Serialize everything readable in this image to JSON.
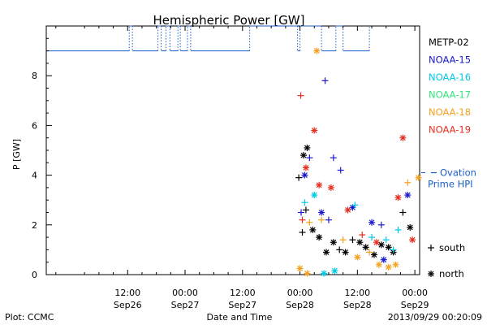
{
  "chart_data": {
    "type": "scatter",
    "title": "Hemispheric Power [GW]",
    "xlabel": "Date and Time",
    "ylabel": "P [GW]",
    "xlim": [
      "2013-09-25T19:00",
      "2013-09-29T01:00"
    ],
    "ylim": [
      0,
      10
    ],
    "y_ticks": [
      0,
      2,
      4,
      6,
      8
    ],
    "x_ticks": [
      {
        "t": "2013-09-26T12:00",
        "top": "12:00",
        "bottom": "Sep26"
      },
      {
        "t": "2013-09-27T00:00",
        "top": "00:00",
        "bottom": "Sep27"
      },
      {
        "t": "2013-09-27T12:00",
        "top": "12:00",
        "bottom": "Sep27"
      },
      {
        "t": "2013-09-28T00:00",
        "top": "00:00",
        "bottom": "Sep28"
      },
      {
        "t": "2013-09-28T12:00",
        "top": "12:00",
        "bottom": "Sep28"
      },
      {
        "t": "2013-09-29T00:00",
        "top": "00:00",
        "bottom": "Sep29"
      }
    ],
    "grid": false,
    "legend_position": "right",
    "marker_legend": [
      {
        "symbol": "+",
        "label": "south"
      },
      {
        "symbol": "*",
        "label": "north"
      }
    ],
    "series": [
      {
        "name": "METP-02",
        "color": "#000000",
        "points": [
          {
            "t": "2013-09-27T23:45",
            "v": 3.9,
            "m": "+"
          },
          {
            "t": "2013-09-28T00:45",
            "v": 4.8,
            "m": "*"
          },
          {
            "t": "2013-09-28T01:30",
            "v": 5.1,
            "m": "*"
          },
          {
            "t": "2013-09-28T00:30",
            "v": 1.7,
            "m": "+"
          },
          {
            "t": "2013-09-28T01:15",
            "v": 2.6,
            "m": "+"
          },
          {
            "t": "2013-09-28T02:40",
            "v": 1.8,
            "m": "*"
          },
          {
            "t": "2013-09-28T04:00",
            "v": 1.5,
            "m": "*"
          },
          {
            "t": "2013-09-28T05:30",
            "v": 0.9,
            "m": "*"
          },
          {
            "t": "2013-09-28T07:00",
            "v": 1.3,
            "m": "*"
          },
          {
            "t": "2013-09-28T08:15",
            "v": 1.0,
            "m": "+"
          },
          {
            "t": "2013-09-28T09:30",
            "v": 0.9,
            "m": "*"
          },
          {
            "t": "2013-09-28T11:00",
            "v": 1.4,
            "m": "+"
          },
          {
            "t": "2013-09-28T12:30",
            "v": 1.3,
            "m": "*"
          },
          {
            "t": "2013-09-28T13:45",
            "v": 1.1,
            "m": "*"
          },
          {
            "t": "2013-09-28T15:30",
            "v": 0.8,
            "m": "*"
          },
          {
            "t": "2013-09-28T17:00",
            "v": 1.2,
            "m": "*"
          },
          {
            "t": "2013-09-28T18:30",
            "v": 1.1,
            "m": "*"
          },
          {
            "t": "2013-09-28T19:30",
            "v": 0.9,
            "m": "*"
          },
          {
            "t": "2013-09-28T21:30",
            "v": 2.5,
            "m": "+"
          },
          {
            "t": "2013-09-28T23:00",
            "v": 1.9,
            "m": "*"
          }
        ]
      },
      {
        "name": "NOAA-15",
        "color": "#1a1acc",
        "points": [
          {
            "t": "2013-09-28T00:15",
            "v": 2.5,
            "m": "+"
          },
          {
            "t": "2013-09-28T02:00",
            "v": 4.7,
            "m": "+"
          },
          {
            "t": "2013-09-28T01:00",
            "v": 4.0,
            "m": "*"
          },
          {
            "t": "2013-09-28T05:15",
            "v": 7.8,
            "m": "+"
          },
          {
            "t": "2013-09-28T07:00",
            "v": 4.7,
            "m": "+"
          },
          {
            "t": "2013-09-28T08:30",
            "v": 4.2,
            "m": "+"
          },
          {
            "t": "2013-09-28T04:30",
            "v": 2.5,
            "m": "*"
          },
          {
            "t": "2013-09-28T06:00",
            "v": 2.2,
            "m": "+"
          },
          {
            "t": "2013-09-28T11:00",
            "v": 2.7,
            "m": "*"
          },
          {
            "t": "2013-09-28T15:00",
            "v": 2.1,
            "m": "*"
          },
          {
            "t": "2013-09-28T17:00",
            "v": 2.0,
            "m": "+"
          },
          {
            "t": "2013-09-28T17:30",
            "v": 0.6,
            "m": "*"
          },
          {
            "t": "2013-09-28T22:30",
            "v": 3.2,
            "m": "*"
          }
        ]
      },
      {
        "name": "NOAA-16",
        "color": "#00c8e6",
        "points": [
          {
            "t": "2013-09-28T01:00",
            "v": 2.9,
            "m": "+"
          },
          {
            "t": "2013-09-28T03:00",
            "v": 3.2,
            "m": "*"
          },
          {
            "t": "2013-09-28T05:00",
            "v": 0.05,
            "m": "*"
          },
          {
            "t": "2013-09-28T07:15",
            "v": 0.15,
            "m": "*"
          },
          {
            "t": "2013-09-28T11:30",
            "v": 2.8,
            "m": "+"
          },
          {
            "t": "2013-09-28T15:00",
            "v": 1.5,
            "m": "+"
          },
          {
            "t": "2013-09-28T18:00",
            "v": 1.4,
            "m": "+"
          },
          {
            "t": "2013-09-28T19:30",
            "v": 1.0,
            "m": "+"
          },
          {
            "t": "2013-09-28T20:30",
            "v": 1.8,
            "m": "+"
          }
        ]
      },
      {
        "name": "NOAA-17",
        "color": "#33e67a",
        "points": []
      },
      {
        "name": "NOAA-18",
        "color": "#f5a01e",
        "points": [
          {
            "t": "2013-09-28T00:00",
            "v": 0.25,
            "m": "*"
          },
          {
            "t": "2013-09-28T01:30",
            "v": 0.05,
            "m": "*"
          },
          {
            "t": "2013-09-28T03:30",
            "v": 9.0,
            "m": "*"
          },
          {
            "t": "2013-09-28T02:00",
            "v": 2.1,
            "m": "+"
          },
          {
            "t": "2013-09-28T04:30",
            "v": 2.2,
            "m": "+"
          },
          {
            "t": "2013-09-28T09:00",
            "v": 1.4,
            "m": "+"
          },
          {
            "t": "2013-09-28T12:00",
            "v": 0.7,
            "m": "*"
          },
          {
            "t": "2013-09-28T14:30",
            "v": 0.9,
            "m": "+"
          },
          {
            "t": "2013-09-28T16:30",
            "v": 0.4,
            "m": "*"
          },
          {
            "t": "2013-09-28T18:30",
            "v": 0.3,
            "m": "*"
          },
          {
            "t": "2013-09-28T20:00",
            "v": 0.4,
            "m": "*"
          },
          {
            "t": "2013-09-28T22:30",
            "v": 3.7,
            "m": "+"
          },
          {
            "t": "2013-09-29T00:45",
            "v": 3.9,
            "m": "*"
          }
        ]
      },
      {
        "name": "NOAA-19",
        "color": "#e62e1e",
        "points": [
          {
            "t": "2013-09-28T00:10",
            "v": 7.2,
            "m": "+"
          },
          {
            "t": "2013-09-28T03:00",
            "v": 5.8,
            "m": "*"
          },
          {
            "t": "2013-09-28T01:15",
            "v": 4.3,
            "m": "*"
          },
          {
            "t": "2013-09-28T04:00",
            "v": 3.6,
            "m": "*"
          },
          {
            "t": "2013-09-28T06:30",
            "v": 3.5,
            "m": "*"
          },
          {
            "t": "2013-09-28T00:30",
            "v": 2.2,
            "m": "+"
          },
          {
            "t": "2013-09-28T10:00",
            "v": 2.6,
            "m": "*"
          },
          {
            "t": "2013-09-28T13:00",
            "v": 1.6,
            "m": "+"
          },
          {
            "t": "2013-09-28T16:00",
            "v": 1.3,
            "m": "*"
          },
          {
            "t": "2013-09-28T20:30",
            "v": 3.1,
            "m": "*"
          },
          {
            "t": "2013-09-28T21:30",
            "v": 5.5,
            "m": "*"
          },
          {
            "t": "2013-09-28T23:30",
            "v": 1.4,
            "m": "*"
          }
        ]
      }
    ],
    "ovation": {
      "label_line1": "Ovation",
      "label_line2": "Prime HPI",
      "color": "#1a5ec8",
      "value": 4.1
    },
    "coverage_line": {
      "color": "#1a5ec8",
      "points": [
        [
          "2013-09-25T19:00",
          9.0
        ],
        [
          "2013-09-26T12:20",
          9.0
        ],
        [
          "2013-09-26T12:20",
          10.0
        ],
        [
          "2013-09-26T13:00",
          10.0
        ],
        [
          "2013-09-26T13:00",
          9.0
        ],
        [
          "2013-09-26T18:20",
          9.0
        ],
        [
          "2013-09-26T18:20",
          10.0
        ],
        [
          "2013-09-26T19:00",
          10.0
        ],
        [
          "2013-09-26T19:00",
          9.0
        ],
        [
          "2013-09-26T20:00",
          9.0
        ],
        [
          "2013-09-26T20:00",
          10.0
        ],
        [
          "2013-09-26T20:50",
          10.0
        ],
        [
          "2013-09-26T20:50",
          9.0
        ],
        [
          "2013-09-26T22:30",
          9.0
        ],
        [
          "2013-09-26T22:30",
          10.0
        ],
        [
          "2013-09-26T23:00",
          10.0
        ],
        [
          "2013-09-26T23:00",
          9.0
        ],
        [
          "2013-09-27T00:30",
          9.0
        ],
        [
          "2013-09-27T00:30",
          10.0
        ],
        [
          "2013-09-27T01:10",
          10.0
        ],
        [
          "2013-09-27T01:10",
          9.0
        ],
        [
          "2013-09-27T13:30",
          9.0
        ],
        [
          "2013-09-27T13:30",
          10.0
        ],
        [
          "2013-09-27T23:30",
          10.0
        ],
        [
          "2013-09-27T23:30",
          9.0
        ],
        [
          "2013-09-28T00:00",
          9.0
        ],
        [
          "2013-09-28T00:00",
          10.0
        ],
        [
          "2013-09-28T04:30",
          10.0
        ],
        [
          "2013-09-28T04:30",
          9.0
        ],
        [
          "2013-09-28T07:30",
          9.0
        ],
        [
          "2013-09-28T07:30",
          10.0
        ],
        [
          "2013-09-28T09:00",
          10.0
        ],
        [
          "2013-09-28T09:00",
          9.0
        ],
        [
          "2013-09-28T14:30",
          9.0
        ],
        [
          "2013-09-28T14:30",
          10.0
        ]
      ]
    }
  },
  "footer": {
    "plot_credit": "Plot: CCMC",
    "xlabel": "Date and Time",
    "timestamp": "2013/09/29 00:20:09"
  }
}
